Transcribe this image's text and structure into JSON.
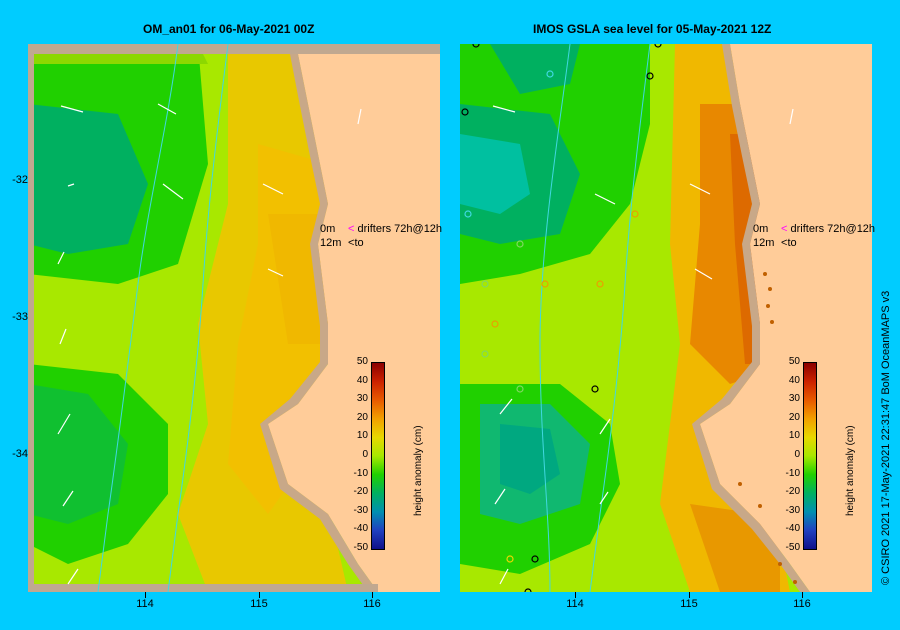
{
  "left_panel": {
    "title": "OM_an01  for 06-May-2021 00Z"
  },
  "right_panel": {
    "title": "IMOS GSLA sea level  for 05-May-2021 12Z"
  },
  "axes": {
    "lat_ticks": [
      "-32",
      "-33",
      "-34"
    ],
    "lon_ticks": [
      "114",
      "115",
      "116"
    ]
  },
  "drifter_legend": {
    "row1_depth": "0m",
    "row1_label": "drifters 72h@12h",
    "row2_depth": "12m",
    "row2_label": "to"
  },
  "colorbar": {
    "title": "height anomaly (cm)",
    "labels": [
      "50",
      "40",
      "30",
      "20",
      "10",
      "0",
      "-10",
      "-20",
      "-30",
      "-40",
      "-50"
    ],
    "colors": [
      "#8b0000",
      "#cc2200",
      "#e85a00",
      "#f2a000",
      "#e8d800",
      "#a8e800",
      "#20d000",
      "#00b060",
      "#0090b0",
      "#2040c0",
      "#10108a"
    ]
  },
  "credit": "© CSIRO 2021   17-May-2021 22:31:47 BoM OceanMAPS v3"
}
